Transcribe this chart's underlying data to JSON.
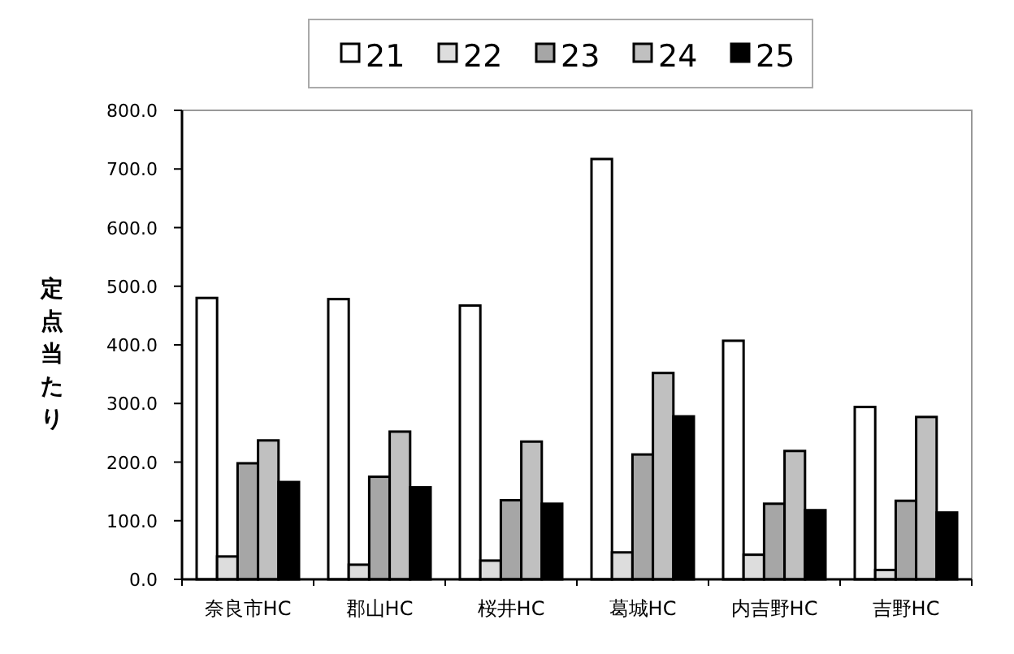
{
  "chart_data": {
    "type": "bar",
    "ylabel": "定点当たり",
    "categories": [
      "奈良市HC",
      "郡山HC",
      "桜井HC",
      "葛城HC",
      "内吉野HC",
      "吉野HC"
    ],
    "series": [
      {
        "name": "21",
        "color": "#ffffff",
        "values": [
          480,
          478,
          467,
          717,
          407,
          294
        ]
      },
      {
        "name": "22",
        "color": "#dddddd",
        "values": [
          39,
          25,
          32,
          46,
          42,
          16
        ]
      },
      {
        "name": "23",
        "color": "#a6a6a6",
        "values": [
          198,
          175,
          135,
          213,
          129,
          134
        ]
      },
      {
        "name": "24",
        "color": "#c0c0c0",
        "values": [
          237,
          252,
          235,
          352,
          219,
          277
        ]
      },
      {
        "name": "25",
        "color": "#000000",
        "values": [
          166,
          157,
          129,
          278,
          118,
          114
        ]
      }
    ],
    "ylim": [
      0,
      800
    ],
    "yticks": [
      {
        "value": 0,
        "label": "0.0"
      },
      {
        "value": 100,
        "label": "100.0"
      },
      {
        "value": 200,
        "label": "200.0"
      },
      {
        "value": 300,
        "label": "300.0"
      },
      {
        "value": 400,
        "label": "400.0"
      },
      {
        "value": 500,
        "label": "500.0"
      },
      {
        "value": 600,
        "label": "600.0"
      },
      {
        "value": 700,
        "label": "700.0"
      },
      {
        "value": 800,
        "label": "800.0"
      }
    ],
    "grid": false,
    "legend": "top"
  }
}
